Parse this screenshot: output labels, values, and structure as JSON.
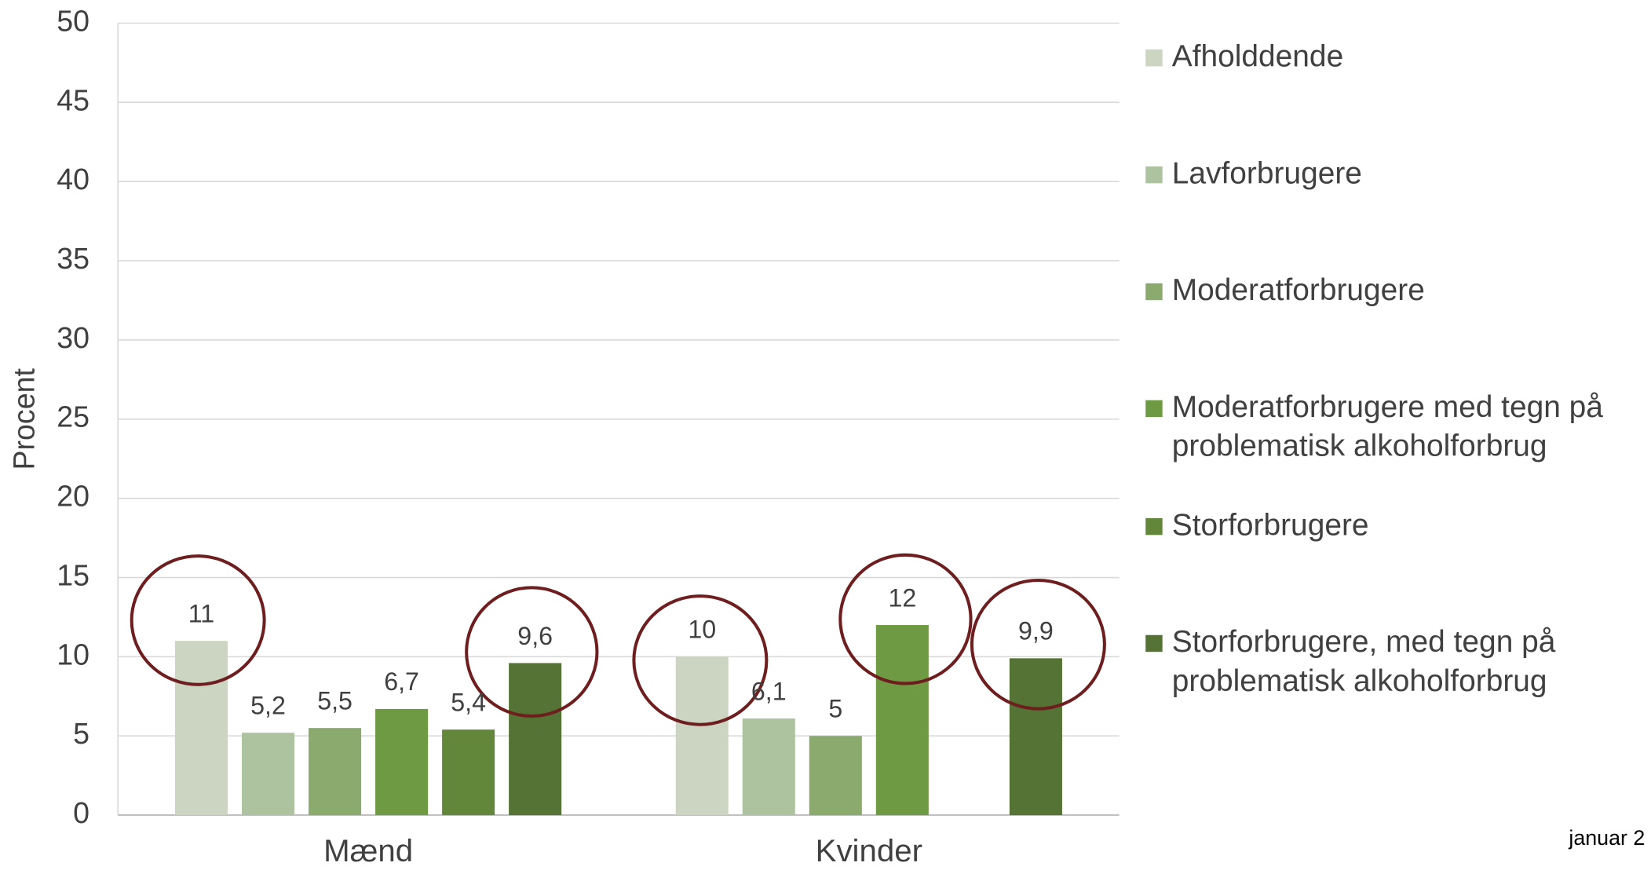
{
  "chart_data": {
    "type": "bar",
    "y_label": "Procent",
    "categories": [
      "Mænd",
      "Kvinder"
    ],
    "series": [
      {
        "name": "Afholddende",
        "color": "#ccd5c2",
        "values": [
          11,
          10
        ],
        "value_labels": [
          "11",
          "10"
        ]
      },
      {
        "name": "Lavforbrugere",
        "color": "#adc29e",
        "values": [
          5.2,
          6.1
        ],
        "value_labels": [
          "5,2",
          "6,1"
        ]
      },
      {
        "name": "Moderatforbrugere",
        "color": "#8aab6d",
        "values": [
          5.5,
          5
        ],
        "value_labels": [
          "5,5",
          "5"
        ]
      },
      {
        "name": "Moderatforbrugere med tegn på problematisk alkoholforbrug",
        "color": "#6f9a44",
        "values": [
          6.7,
          12
        ],
        "value_labels": [
          "6,7",
          "12"
        ]
      },
      {
        "name": "Storforbrugere",
        "color": "#62873b",
        "values": [
          5.4,
          null
        ],
        "value_labels": [
          "5,4",
          null
        ]
      },
      {
        "name": "Storforbrugere, med tegn på problematisk alkoholforbrug",
        "color": "#547334",
        "values": [
          9.6,
          9.9
        ],
        "value_labels": [
          "9,6",
          "9,9"
        ]
      }
    ],
    "ylim": [
      0,
      50
    ],
    "yticks": [
      0,
      5,
      10,
      15,
      20,
      25,
      30,
      35,
      40,
      45,
      50
    ],
    "grid": true,
    "legend": "right",
    "footnote": "januar 2"
  }
}
